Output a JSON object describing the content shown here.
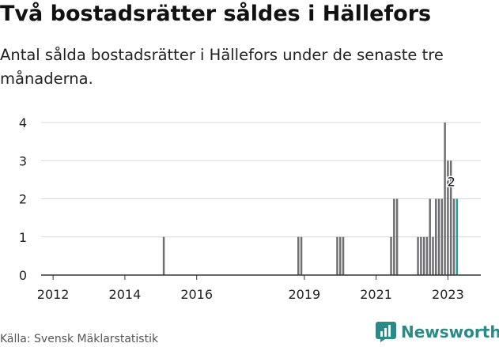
{
  "title": "Två bostadsrätter såldes i Hällefors",
  "subtitle": "Antal sålda bostadsrätter i Hällefors under de senaste tre månaderna.",
  "source": "Källa: Svensk Mäklarstatistik",
  "brand": "Newsworthy",
  "colors": {
    "bar": "#6f6f73",
    "highlight": "#2a9d95",
    "grid": "#d9d9d9",
    "axis": "#333333"
  },
  "chart_data": {
    "type": "bar",
    "title": "Två bostadsrätter såldes i Hällefors",
    "xlabel": "",
    "ylabel": "",
    "ylim": [
      0,
      4
    ],
    "y_ticks": [
      0,
      1,
      2,
      3,
      4
    ],
    "x_ticks": [
      "2012",
      "2014",
      "2016",
      "2019",
      "2021",
      "2023"
    ],
    "grid": true,
    "x": [
      "2015-02",
      "2018-11",
      "2018-12",
      "2019-12",
      "2020-01",
      "2020-02",
      "2021-06",
      "2021-07",
      "2021-08",
      "2022-03",
      "2022-04",
      "2022-05",
      "2022-06",
      "2022-07",
      "2022-08",
      "2022-09",
      "2022-10",
      "2022-11",
      "2022-12",
      "2023-01",
      "2023-02",
      "2023-03",
      "2023-04"
    ],
    "values": [
      1,
      1,
      1,
      1,
      1,
      1,
      1,
      2,
      2,
      1,
      1,
      1,
      1,
      2,
      1,
      2,
      2,
      2,
      4,
      3,
      3,
      2,
      2
    ],
    "highlight": {
      "x": "2023-04",
      "value": 2,
      "label": "2"
    }
  }
}
